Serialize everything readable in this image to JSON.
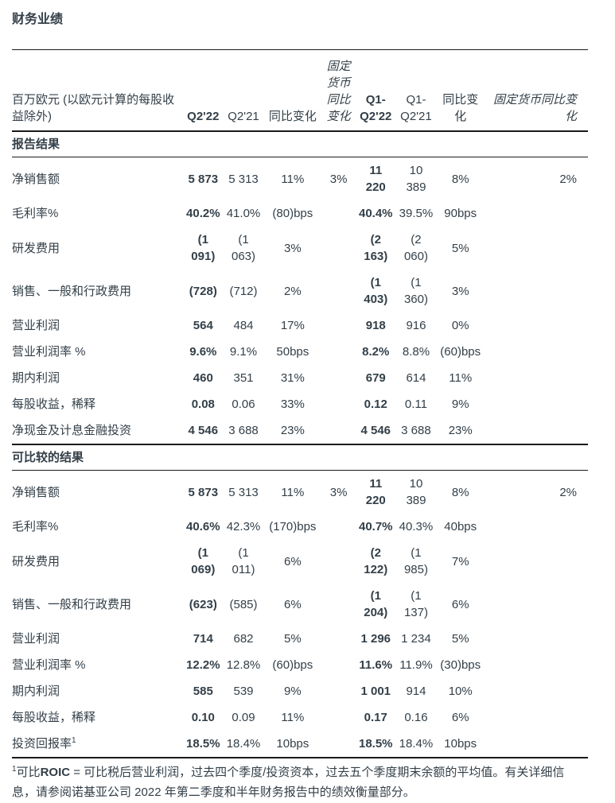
{
  "title": "财务业绩",
  "colors": {
    "text": "#333F48",
    "rule": "#1A1A1A"
  },
  "table": {
    "header_label": "百万欧元 (以欧元计算的每股收益除外)",
    "columns": [
      "Q2'22",
      "Q2'21",
      "同比变化",
      "固定货币同比变化",
      "Q1-Q2'22",
      "Q1-Q2'21",
      "同比变化",
      "固定货币同比变化"
    ],
    "sections": [
      {
        "name": "报告结果",
        "rows": [
          {
            "label": "净销售额",
            "values": [
              "5 873",
              "5 313",
              "11%",
              "3%",
              "11 220",
              "10 389",
              "8%",
              "2%"
            ]
          },
          {
            "label": "毛利率%",
            "values": [
              "40.2%",
              "41.0%",
              "(80)bps",
              "",
              "40.4%",
              "39.5%",
              "90bps",
              ""
            ]
          },
          {
            "label": "研发费用",
            "values": [
              "(1 091)",
              "(1 063)",
              "3%",
              "",
              "(2 163)",
              "(2 060)",
              "5%",
              ""
            ]
          },
          {
            "label": "销售、一般和行政费用",
            "values": [
              "(728)",
              "(712)",
              "2%",
              "",
              "(1 403)",
              "(1 360)",
              "3%",
              ""
            ]
          },
          {
            "label": "营业利润",
            "values": [
              "564",
              "484",
              "17%",
              "",
              "918",
              "916",
              "0%",
              ""
            ]
          },
          {
            "label": "营业利润率 %",
            "values": [
              "9.6%",
              "9.1%",
              "50bps",
              "",
              "8.2%",
              "8.8%",
              "(60)bps",
              ""
            ]
          },
          {
            "label": "期内利润",
            "values": [
              "460",
              "351",
              "31%",
              "",
              "679",
              "614",
              "11%",
              ""
            ]
          },
          {
            "label": "每股收益，稀释",
            "values": [
              "0.08",
              "0.06",
              "33%",
              "",
              "0.12",
              "0.11",
              "9%",
              ""
            ]
          },
          {
            "label": "净现金及计息金融投资",
            "values": [
              "4 546",
              "3 688",
              "23%",
              "",
              "4 546",
              "3 688",
              "23%",
              ""
            ]
          }
        ]
      },
      {
        "name": "可比较的结果",
        "rows": [
          {
            "label": "净销售额",
            "values": [
              "5 873",
              "5 313",
              "11%",
              "3%",
              "11 220",
              "10 389",
              "8%",
              "2%"
            ]
          },
          {
            "label": "毛利率%",
            "values": [
              "40.6%",
              "42.3%",
              "(170)bps",
              "",
              "40.7%",
              "40.3%",
              "40bps",
              ""
            ]
          },
          {
            "label": "研发费用",
            "values": [
              "(1 069)",
              "(1 011)",
              "6%",
              "",
              "(2 122)",
              "(1 985)",
              "7%",
              ""
            ]
          },
          {
            "label": "销售、一般和行政费用",
            "values": [
              "(623)",
              "(585)",
              "6%",
              "",
              "(1 204)",
              "(1 137)",
              "6%",
              ""
            ]
          },
          {
            "label": "营业利润",
            "values": [
              "714",
              "682",
              "5%",
              "",
              "1 296",
              "1 234",
              "5%",
              ""
            ]
          },
          {
            "label": "营业利润率 %",
            "values": [
              "12.2%",
              "12.8%",
              "(60)bps",
              "",
              "11.6%",
              "11.9%",
              "(30)bps",
              ""
            ]
          },
          {
            "label": "期内利润",
            "values": [
              "585",
              "539",
              "9%",
              "",
              "1 001",
              "914",
              "10%",
              ""
            ]
          },
          {
            "label": "每股收益，稀释",
            "values": [
              "0.10",
              "0.09",
              "11%",
              "",
              "0.17",
              "0.16",
              "6%",
              ""
            ]
          },
          {
            "label": "投资回报率",
            "label_sup": "1",
            "values": [
              "18.5%",
              "18.4%",
              "10bps",
              "",
              "18.5%",
              "18.4%",
              "10bps",
              ""
            ]
          }
        ]
      }
    ]
  },
  "footnote": {
    "sup": "1",
    "lead": "可比",
    "term": "ROIC",
    "text": " = 可比税后营业利润，过去四个季度/投资资本，过去五个季度期末余额的平均值。有关详细信息，请参阅诺基亚公司 2022 年第二季度和半年财务报告中的绩效衡量部分。"
  }
}
